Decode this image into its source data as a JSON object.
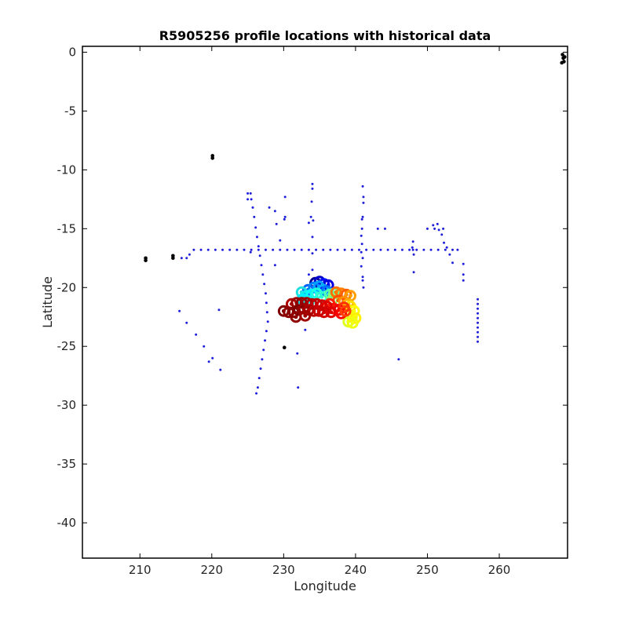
{
  "chart_data": {
    "type": "scatter",
    "title": "R5905256 profile locations with historical data",
    "xlabel": "Longitude",
    "ylabel": "Latitude",
    "xlim": [
      202,
      269.5
    ],
    "ylim": [
      -43,
      0.5
    ],
    "xticks": [
      210,
      220,
      230,
      240,
      250,
      260
    ],
    "yticks": [
      0,
      -5,
      -10,
      -15,
      -20,
      -25,
      -30,
      -35,
      -40
    ],
    "grid": false,
    "coastline_color": "#000000",
    "historical_color": "#1f1fdc",
    "coastline": [
      [
        268.8,
        -0.2
      ],
      [
        268.9,
        -0.5
      ],
      [
        269.0,
        -0.8
      ],
      [
        269.1,
        -0.4
      ],
      [
        268.7,
        -0.9
      ],
      [
        220.1,
        -8.8
      ],
      [
        220.1,
        -9.0
      ],
      [
        210.8,
        -17.5
      ],
      [
        210.8,
        -17.7
      ],
      [
        214.6,
        -17.3
      ],
      [
        214.6,
        -17.5
      ],
      [
        230.1,
        -25.1
      ]
    ],
    "historical": [
      [
        217.5,
        -16.8
      ],
      [
        218.5,
        -16.8
      ],
      [
        219.5,
        -16.8
      ],
      [
        220.5,
        -16.8
      ],
      [
        221.5,
        -16.8
      ],
      [
        222.5,
        -16.8
      ],
      [
        223.5,
        -16.8
      ],
      [
        224.5,
        -16.8
      ],
      [
        225.5,
        -16.8
      ],
      [
        226.5,
        -16.8
      ],
      [
        227.5,
        -16.8
      ],
      [
        228.5,
        -16.8
      ],
      [
        229.5,
        -16.8
      ],
      [
        230.5,
        -16.8
      ],
      [
        231.5,
        -16.8
      ],
      [
        232.5,
        -16.8
      ],
      [
        233.5,
        -16.8
      ],
      [
        234.5,
        -16.8
      ],
      [
        235.5,
        -16.8
      ],
      [
        236.5,
        -16.8
      ],
      [
        237.5,
        -16.8
      ],
      [
        238.5,
        -16.8
      ],
      [
        239.5,
        -16.8
      ],
      [
        240.5,
        -16.8
      ],
      [
        241.5,
        -16.8
      ],
      [
        242.5,
        -16.8
      ],
      [
        243.5,
        -16.8
      ],
      [
        244.5,
        -16.8
      ],
      [
        245.5,
        -16.8
      ],
      [
        246.5,
        -16.8
      ],
      [
        247.5,
        -16.8
      ],
      [
        248.5,
        -16.8
      ],
      [
        249.5,
        -16.8
      ],
      [
        250.5,
        -16.8
      ],
      [
        251.5,
        -16.8
      ],
      [
        252.5,
        -16.8
      ],
      [
        253.5,
        -16.8
      ],
      [
        254.2,
        -16.8
      ],
      [
        215.8,
        -17.5
      ],
      [
        216.5,
        -17.5
      ],
      [
        216.9,
        -17.2
      ],
      [
        225.0,
        -12.0
      ],
      [
        225.4,
        -12.0
      ],
      [
        225.0,
        -12.5
      ],
      [
        225.5,
        -12.5
      ],
      [
        225.7,
        -13.2
      ],
      [
        225.9,
        -14.0
      ],
      [
        226.1,
        -14.9
      ],
      [
        226.3,
        -15.7
      ],
      [
        226.5,
        -16.5
      ],
      [
        226.7,
        -17.3
      ],
      [
        226.9,
        -18.1
      ],
      [
        227.1,
        -18.9
      ],
      [
        227.3,
        -19.7
      ],
      [
        227.5,
        -20.5
      ],
      [
        227.6,
        -21.3
      ],
      [
        227.7,
        -22.1
      ],
      [
        227.8,
        -22.9
      ],
      [
        227.6,
        -23.7
      ],
      [
        227.4,
        -24.5
      ],
      [
        227.2,
        -25.3
      ],
      [
        227.0,
        -26.1
      ],
      [
        226.8,
        -26.9
      ],
      [
        226.6,
        -27.7
      ],
      [
        226.4,
        -28.5
      ],
      [
        226.2,
        -29.0
      ],
      [
        225.4,
        -17.0
      ],
      [
        228.0,
        -13.2
      ],
      [
        228.8,
        -13.5
      ],
      [
        229.0,
        -14.6
      ],
      [
        229.5,
        -16.0
      ],
      [
        228.8,
        -18.1
      ],
      [
        230.2,
        -12.3
      ],
      [
        230.2,
        -14.0
      ],
      [
        230.1,
        -14.2
      ],
      [
        234.0,
        -11.2
      ],
      [
        234.0,
        -11.6
      ],
      [
        233.9,
        -12.7
      ],
      [
        233.8,
        -14.0
      ],
      [
        234.1,
        -14.3
      ],
      [
        233.5,
        -14.5
      ],
      [
        234.0,
        -15.7
      ],
      [
        234.0,
        -17.1
      ],
      [
        234.0,
        -18.5
      ],
      [
        233.5,
        -18.9
      ],
      [
        241.0,
        -11.4
      ],
      [
        241.1,
        -12.3
      ],
      [
        241.1,
        -12.8
      ],
      [
        241.0,
        -14.0
      ],
      [
        240.9,
        -14.2
      ],
      [
        240.9,
        -15.0
      ],
      [
        240.8,
        -15.6
      ],
      [
        240.9,
        -16.3
      ],
      [
        240.8,
        -17.0
      ],
      [
        241.0,
        -17.5
      ],
      [
        240.8,
        -18.2
      ],
      [
        241.0,
        -19.1
      ],
      [
        241.0,
        -19.4
      ],
      [
        241.1,
        -20.0
      ],
      [
        243.1,
        -15.0
      ],
      [
        244.1,
        -15.0
      ],
      [
        248.0,
        -16.1
      ],
      [
        248.0,
        -16.8
      ],
      [
        248.1,
        -17.2
      ],
      [
        248.1,
        -18.7
      ],
      [
        247.9,
        -16.6
      ],
      [
        250.0,
        -15.0
      ],
      [
        250.8,
        -14.7
      ],
      [
        251.0,
        -15.0
      ],
      [
        251.4,
        -14.6
      ],
      [
        251.6,
        -15.1
      ],
      [
        252.2,
        -15.0
      ],
      [
        252.0,
        -15.5
      ],
      [
        252.3,
        -16.2
      ],
      [
        252.7,
        -16.6
      ],
      [
        253.1,
        -17.2
      ],
      [
        253.5,
        -17.9
      ],
      [
        255.0,
        -18.0
      ],
      [
        255.0,
        -18.9
      ],
      [
        255.0,
        -19.4
      ],
      [
        257.0,
        -21.0
      ],
      [
        257.0,
        -21.4
      ],
      [
        257.0,
        -21.8
      ],
      [
        257.0,
        -22.2
      ],
      [
        257.0,
        -22.6
      ],
      [
        257.0,
        -23.0
      ],
      [
        257.0,
        -23.4
      ],
      [
        257.0,
        -23.8
      ],
      [
        257.0,
        -24.2
      ],
      [
        257.0,
        -24.6
      ],
      [
        215.5,
        -22.0
      ],
      [
        216.5,
        -23.0
      ],
      [
        217.8,
        -24.0
      ],
      [
        218.9,
        -25.0
      ],
      [
        219.6,
        -26.3
      ],
      [
        220.1,
        -26.0
      ],
      [
        221.2,
        -27.0
      ],
      [
        221.0,
        -21.9
      ],
      [
        231.9,
        -25.6
      ],
      [
        232.0,
        -28.5
      ],
      [
        233.0,
        -23.6
      ],
      [
        246.0,
        -26.1
      ]
    ],
    "profiles": {
      "comment": "",
      "points": [
        [
          234.4,
          -19.6,
          "#00008f"
        ],
        [
          235.0,
          -19.5,
          "#0000cf"
        ],
        [
          235.6,
          -19.7,
          "#0010ff"
        ],
        [
          236.2,
          -19.8,
          "#0000df"
        ],
        [
          233.4,
          -20.2,
          "#0060ff"
        ],
        [
          234.2,
          -20.0,
          "#0080ff"
        ],
        [
          234.9,
          -19.9,
          "#00a0ff"
        ],
        [
          235.5,
          -20.2,
          "#00b0ff"
        ],
        [
          236.0,
          -20.3,
          "#0070ff"
        ],
        [
          232.5,
          -20.4,
          "#20dfdf"
        ],
        [
          233.2,
          -20.7,
          "#10efef"
        ],
        [
          233.9,
          -20.6,
          "#00ffff"
        ],
        [
          234.6,
          -20.5,
          "#20ffdf"
        ],
        [
          235.3,
          -20.8,
          "#30ffcf"
        ],
        [
          232.6,
          -21.0,
          "#00efff"
        ],
        [
          233.5,
          -21.2,
          "#10ffef"
        ],
        [
          236.4,
          -20.6,
          "#50ffaf"
        ],
        [
          237.0,
          -20.5,
          "#70ff8f"
        ],
        [
          236.8,
          -21.0,
          "#8fff70"
        ],
        [
          237.3,
          -20.4,
          "#ff7000"
        ],
        [
          238.0,
          -20.5,
          "#ff8000"
        ],
        [
          238.7,
          -20.6,
          "#ff6000"
        ],
        [
          239.3,
          -20.7,
          "#ffa000"
        ],
        [
          237.6,
          -21.1,
          "#ff5000"
        ],
        [
          238.4,
          -21.2,
          "#ff9000"
        ],
        [
          239.0,
          -21.4,
          "#ffb000"
        ],
        [
          239.3,
          -21.6,
          "#ffdf00"
        ],
        [
          239.8,
          -22.0,
          "#ffff00"
        ],
        [
          239.5,
          -22.5,
          "#efff10"
        ],
        [
          239.0,
          -22.9,
          "#dfff20"
        ],
        [
          240.0,
          -22.6,
          "#ffef00"
        ],
        [
          239.6,
          -23.0,
          "#efff10"
        ],
        [
          236.4,
          -21.4,
          "#ff2000"
        ],
        [
          237.0,
          -21.8,
          "#ff1000"
        ],
        [
          237.7,
          -21.9,
          "#ef0000"
        ],
        [
          238.4,
          -21.7,
          "#ff3000"
        ],
        [
          236.6,
          -22.1,
          "#df0000"
        ],
        [
          238.0,
          -22.2,
          "#ff0000"
        ],
        [
          238.6,
          -22.0,
          "#ff4000"
        ],
        [
          231.1,
          -21.4,
          "#af0000"
        ],
        [
          231.8,
          -21.3,
          "#9f0000"
        ],
        [
          232.5,
          -21.3,
          "#8f0000"
        ],
        [
          233.2,
          -21.3,
          "#a00000"
        ],
        [
          233.9,
          -21.4,
          "#b00000"
        ],
        [
          234.6,
          -21.4,
          "#c00000"
        ],
        [
          235.3,
          -21.5,
          "#cf0000"
        ],
        [
          236.0,
          -21.6,
          "#df0000"
        ],
        [
          230.0,
          -22.0,
          "#800000"
        ],
        [
          230.7,
          -22.1,
          "#900000"
        ],
        [
          231.4,
          -22.1,
          "#880000"
        ],
        [
          232.1,
          -21.9,
          "#800000"
        ],
        [
          232.8,
          -21.8,
          "#980000"
        ],
        [
          233.5,
          -21.9,
          "#a80000"
        ],
        [
          234.2,
          -22.0,
          "#b80000"
        ],
        [
          234.9,
          -22.0,
          "#c80000"
        ],
        [
          235.6,
          -22.1,
          "#d00000"
        ],
        [
          231.7,
          -22.5,
          "#8f0000"
        ],
        [
          233.0,
          -22.4,
          "#9f0000"
        ]
      ]
    }
  }
}
